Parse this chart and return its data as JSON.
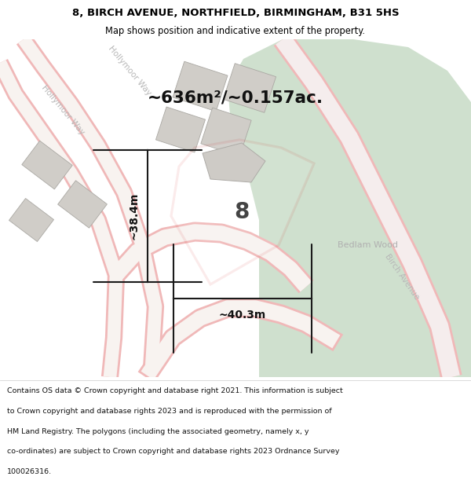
{
  "title_line1": "8, BIRCH AVENUE, NORTHFIELD, BIRMINGHAM, B31 5HS",
  "title_line2": "Map shows position and indicative extent of the property.",
  "area_text": "~636m²/~0.157ac.",
  "label_height": "~38.4m",
  "label_width": "~40.3m",
  "property_number": "8",
  "location_label": "Bedlam Wood",
  "road_label_left": "Hollymoor Way",
  "road_label_right": "Birch Avenue",
  "footer_lines": [
    "Contains OS data © Crown copyright and database right 2021. This information is subject",
    "to Crown copyright and database rights 2023 and is reproduced with the permission of",
    "HM Land Registry. The polygons (including the associated geometry, namely x, y",
    "co-ordinates) are subject to Crown copyright and database rights 2023 Ordnance Survey",
    "100026316."
  ],
  "map_bg": "#edeae5",
  "green_area_color": "#cfe0ce",
  "building_color": "#d0cdc8",
  "plot_border_color": "#cc0000",
  "dim_line_color": "#1a1a1a",
  "title_bg": "#ffffff",
  "footer_bg": "#ffffff"
}
